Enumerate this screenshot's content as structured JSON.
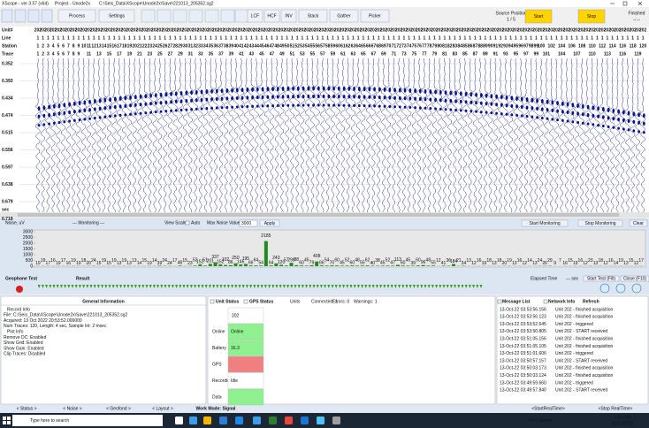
{
  "title_bar": {
    "app": "XScope - ver 3.57 (x64)",
    "project": "Project - Unode2x",
    "file": "C:\\Seis_Data\\XScope\\Unode2x\\Save\\221013_205352.sg2"
  },
  "toolbar": {
    "buttons": [
      "Process",
      "Settings",
      "LCF",
      "HCF",
      "INV",
      "Stack",
      "Gather",
      "Picker"
    ],
    "source_position_label": "Source Position",
    "source_position": "1 / 5",
    "start": "Start",
    "stop": "Stop",
    "status": "Finished",
    "status_time": "--:--"
  },
  "header": {
    "labels": [
      "Unit#",
      "Line",
      "Station",
      "Trace"
    ],
    "unit": "202",
    "line": "1",
    "stations": [
      1,
      2,
      3,
      4,
      5,
      6,
      7,
      8,
      9,
      10,
      11,
      12,
      13,
      14,
      15,
      16,
      17,
      18,
      19,
      20,
      21,
      22,
      23,
      24,
      25,
      26,
      27,
      28,
      29,
      30,
      31,
      32,
      33,
      34,
      35,
      36,
      37,
      38,
      39,
      40,
      41,
      42,
      43,
      44,
      45,
      46,
      47,
      48,
      49,
      50,
      51,
      52,
      53,
      54,
      55,
      56,
      57,
      58,
      59,
      60,
      61,
      62,
      63,
      64,
      65,
      66,
      67,
      68,
      69,
      70,
      71,
      72,
      73,
      74,
      75,
      76,
      77,
      78,
      79,
      80,
      81,
      82,
      83,
      84,
      85,
      86,
      87,
      88,
      89,
      90,
      91,
      92,
      93,
      94,
      95,
      96,
      97,
      98,
      99,
      100,
      102,
      104,
      106,
      108,
      110,
      112,
      114,
      116,
      118,
      120
    ],
    "traces": [
      1,
      2,
      3,
      4,
      5,
      6,
      7,
      8,
      9,
      11,
      13,
      15,
      17,
      19,
      21,
      23,
      25,
      27,
      29,
      31,
      33,
      35,
      37,
      39,
      41,
      43,
      45,
      47,
      49,
      51,
      53,
      55,
      57,
      59,
      61,
      63,
      65,
      67,
      69,
      71,
      73,
      75,
      77,
      79,
      81,
      83,
      85,
      87,
      89,
      91,
      93,
      95,
      97,
      99,
      101,
      104,
      107,
      110,
      113,
      116,
      119
    ]
  },
  "seismic": {
    "times": [
      "0.352",
      "0.393",
      "0.434",
      "0.474",
      "0.515",
      "0.556",
      "0.597",
      "0.638",
      "0.679",
      "0.719"
    ],
    "time_unit": "sec"
  },
  "noise_toolbar": {
    "title": "Noise, uV",
    "monitoring": "--- Monitoring ---",
    "view_scale": "View Scale",
    "auto": "Auto",
    "max_noise_label": "Max Noise Value",
    "max_noise": "3000",
    "apply": "Apply",
    "start_monitoring": "Start Monitoring",
    "stop_monitoring": "Stop Monitoring",
    "clear": "Clear"
  },
  "noise_chart": {
    "type": "bar",
    "color": "#1e8c1e",
    "ylim": [
      0,
      3000
    ],
    "yticks": [
      0,
      500,
      1000,
      1500,
      2000,
      2500,
      3000
    ],
    "values": [
      19,
      19,
      17,
      16,
      19,
      17,
      16,
      19,
      19,
      18,
      20,
      24,
      15,
      19,
      15,
      19,
      13,
      19,
      13,
      13,
      14,
      15,
      19,
      14,
      39,
      24,
      24,
      17,
      48,
      15,
      23,
      52,
      152,
      51,
      201,
      337,
      152,
      102,
      86,
      250,
      146,
      195,
      66,
      64,
      54,
      2185,
      64,
      243,
      120,
      57,
      298,
      88,
      60,
      45,
      79,
      408,
      66,
      54,
      70,
      60,
      45,
      52,
      60,
      48,
      55,
      62,
      40,
      38,
      45,
      52,
      47,
      113,
      60,
      45,
      39,
      60,
      96,
      48,
      55,
      12,
      41,
      36,
      184,
      21,
      34,
      13,
      12,
      16,
      19,
      18,
      13,
      18,
      20,
      19,
      13,
      16,
      12,
      14,
      13,
      24,
      26,
      29,
      9,
      7,
      16,
      15,
      19,
      16,
      12,
      23,
      13,
      18,
      12,
      16,
      14,
      19,
      13,
      15,
      12,
      17
    ]
  },
  "geophone": {
    "test": "Geophone Test",
    "result": "Result",
    "elapsed": "Elapsed Time",
    "elapsed_value": "--- sec",
    "start_test": "Start Test (Fill)",
    "close": "Close (F10)"
  },
  "general_info": {
    "title": "General Information",
    "lines": [
      "Record Info",
      "File: C:\\Seis_Data\\XScope\\Unode2x\\Save\\221013_205352.sg2",
      "Acquired: 13 Oct 2022 20:53:52.000000",
      "Num Traces: 120, Length: 4 sec, Sample Int: 2 msec",
      "Plot Info",
      "Remove DC: Enabled",
      "Show Grid: Enabled",
      "Show Gain: Enabled",
      "Clip Traces: Disabled"
    ]
  },
  "unit_status": {
    "unit_check": "Unit Status",
    "gps_check": "GPS Status",
    "summary": [
      "Units",
      "Connected: 1",
      "Errors: 0",
      "Warnings: 1"
    ],
    "unit": "202",
    "rows": [
      {
        "label": "Online",
        "value": "Online",
        "state": "ok"
      },
      {
        "label": "Battery",
        "value": "16.3",
        "state": "ok"
      },
      {
        "label": "GPS",
        "state": "error"
      },
      {
        "label": "Recording",
        "value": "Idle",
        "state": "none"
      },
      {
        "label": "Data",
        "state": "ok"
      }
    ]
  },
  "messages": {
    "tabs": [
      "Message List",
      "Network Info",
      "Refresh"
    ],
    "items": [
      [
        "13-Oct-22  03:53:56.156",
        "Unit 202 - finished acquisition"
      ],
      [
        "13-Oct-22  03:53:56.123",
        "Unit 202 - finished acquisition"
      ],
      [
        "13-Oct-22  03:53:52.645",
        "Unit 202 - triggered"
      ],
      [
        "13-Oct-22  03:53:50.805",
        "Unit 202 - START received"
      ],
      [
        "13-Oct-22  03:51:05.156",
        "Unit 202 - finished acquisition"
      ],
      [
        "13-Oct-22  03:51:05.105",
        "Unit 202 - finished acquisition"
      ],
      [
        "13-Oct-22  03:51:01.606",
        "Unit 202 - triggered"
      ],
      [
        "13-Oct-22  03:50:57.157",
        "Unit 202 - START received"
      ],
      [
        "13-Oct-22  03:50:03.173",
        "Unit 202 - finished acquisition"
      ],
      [
        "13-Oct-22  03:50:03.124",
        "Unit 202 - finished acquisition"
      ],
      [
        "13-Oct-22  03:49:59.660",
        "Unit 202 - triggered"
      ],
      [
        "13-Oct-22  03:49:57.840",
        "Unit 202 - START received"
      ]
    ]
  },
  "status_tabs": {
    "left": [
      "< Status >",
      "< Noise >",
      "< Geofond >",
      "< Layout >"
    ],
    "work_mode": "Work Mode: Signal",
    "right": [
      "<StartRealTime>",
      "<Stop RealTime>"
    ]
  },
  "taskbar": {
    "search": "Type here to search",
    "weather": "74°F  Sunny",
    "time": "3:54 PM",
    "date": "10/13/2022"
  }
}
